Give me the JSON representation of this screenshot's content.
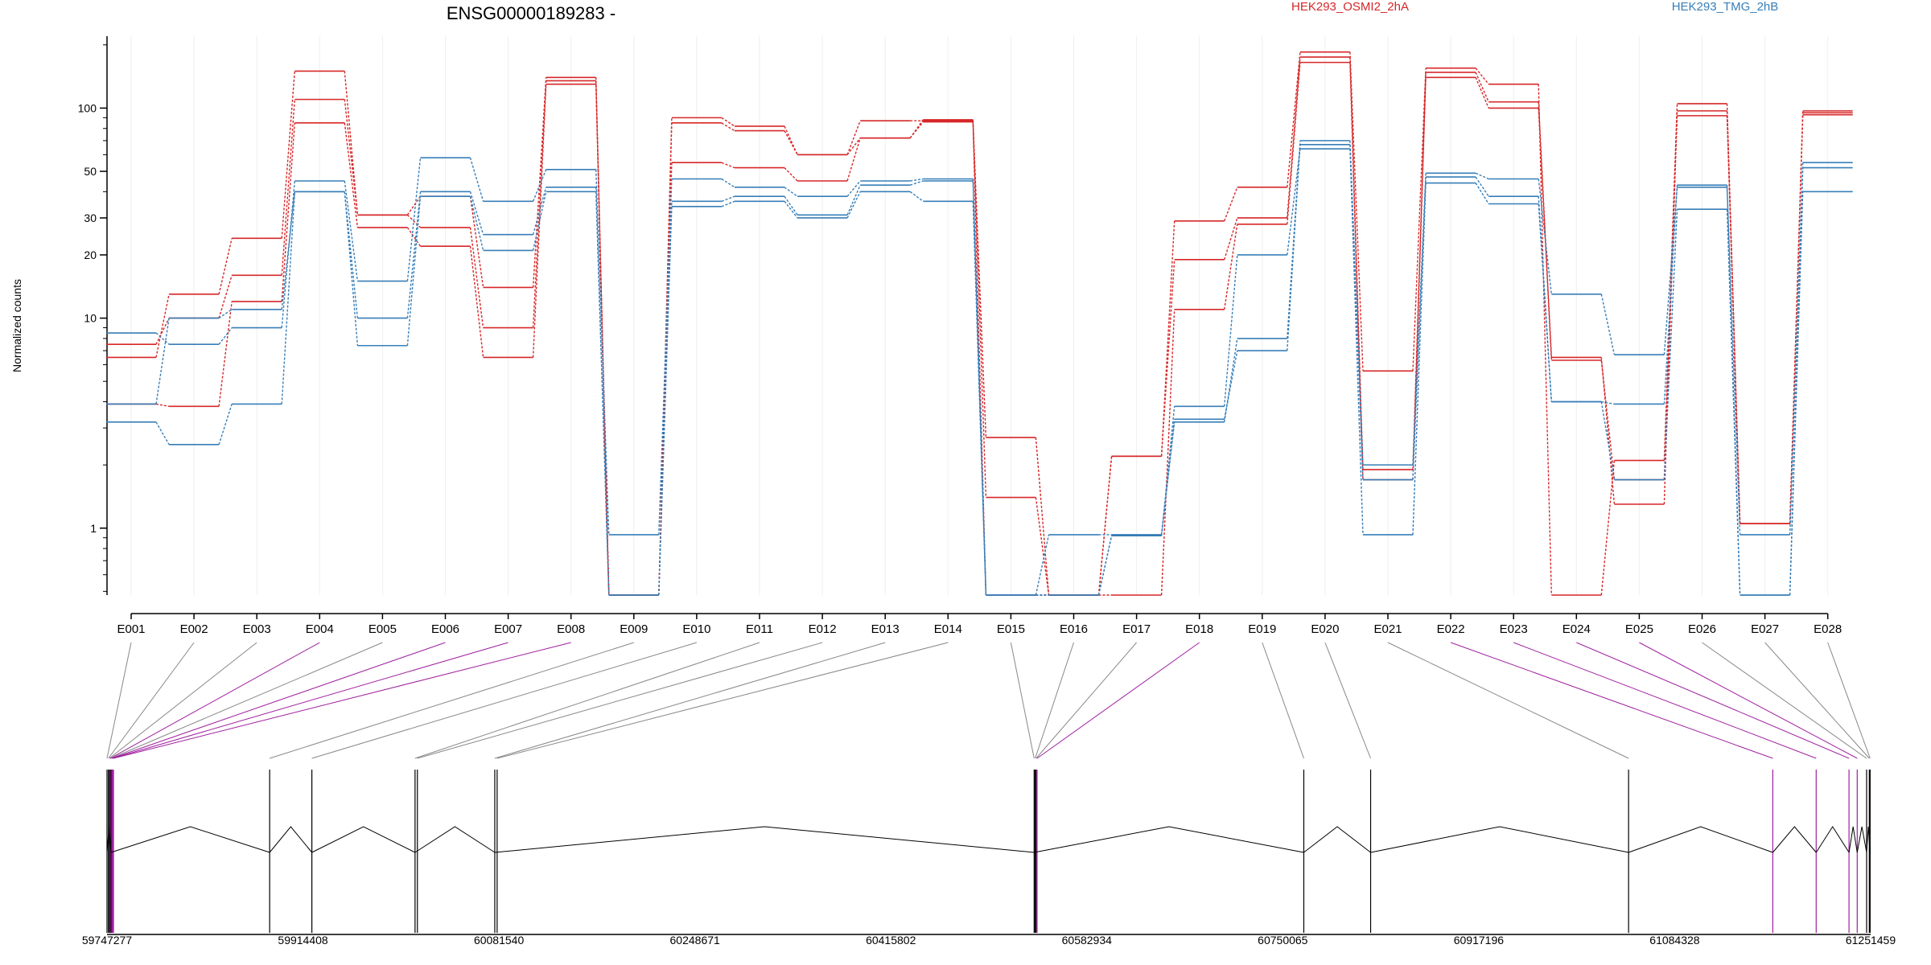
{
  "chart_data": {
    "type": "line",
    "title": "ENSG00000189283 -",
    "ylabel": "Normalized counts",
    "yscale": "log",
    "ylim": [
      0.48,
      220
    ],
    "yticks": [
      1,
      10,
      20,
      30,
      50,
      100
    ],
    "yticklabels": [
      "1",
      "10",
      "20",
      "30",
      "50",
      "100"
    ],
    "grid": false,
    "legend": [
      {
        "name": "HEK293_OSMI2_2hA",
        "color": "#d62728"
      },
      {
        "name": "HEK293_TMG_2hB",
        "color": "#377eb8"
      }
    ],
    "exons": [
      "E001",
      "E002",
      "E003",
      "E004",
      "E005",
      "E006",
      "E007",
      "E008",
      "E009",
      "E010",
      "E011",
      "E012",
      "E013",
      "E014",
      "E015",
      "E016",
      "E017",
      "E018",
      "E019",
      "E020",
      "E021",
      "E022",
      "E023",
      "E024",
      "E025",
      "E026",
      "E027",
      "E028"
    ],
    "series": [
      {
        "group": "HEK293_OSMI2_2hA",
        "color": "#d62728",
        "values": [
          6.5,
          13,
          24,
          150,
          31,
          38,
          14,
          140,
          0.48,
          90,
          82,
          60,
          87,
          87,
          2.7,
          0.48,
          2.2,
          29,
          42,
          185,
          5.6,
          155,
          130,
          0.48,
          2.1,
          105,
          1.05,
          97
        ]
      },
      {
        "group": "HEK293_OSMI2_2hA",
        "color": "#d62728",
        "values": [
          7.5,
          10,
          16,
          110,
          31,
          27,
          9,
          135,
          0.48,
          85,
          78,
          60,
          72,
          88,
          1.4,
          0.48,
          2.2,
          19,
          30,
          175,
          1.9,
          148,
          107,
          6.5,
          1.3,
          97,
          1.05,
          95
        ]
      },
      {
        "group": "HEK293_OSMI2_2hA",
        "color": "#d62728",
        "values": [
          3.9,
          3.8,
          12,
          85,
          27,
          22,
          6.5,
          130,
          0.48,
          55,
          52,
          45,
          72,
          86,
          0.48,
          0.48,
          0.48,
          11,
          28,
          165,
          1.7,
          140,
          100,
          6.3,
          1.7,
          92,
          1.05,
          93
        ]
      },
      {
        "group": "HEK293_TMG_2hB",
        "color": "#377eb8",
        "values": [
          8.5,
          7.5,
          9,
          45,
          15,
          58,
          36,
          51,
          0.93,
          46,
          42,
          38,
          45,
          46,
          0.48,
          0.93,
          0.93,
          3.2,
          8,
          70,
          2.0,
          49,
          46,
          13,
          6.7,
          42,
          0.93,
          55
        ]
      },
      {
        "group": "HEK293_TMG_2hB",
        "color": "#377eb8",
        "values": [
          3.9,
          10,
          11,
          40,
          10,
          40,
          25,
          42,
          0.48,
          36,
          38,
          31,
          43,
          45,
          0.48,
          0.48,
          0.92,
          3.3,
          7,
          67,
          1.7,
          47,
          38,
          4.0,
          3.9,
          43,
          0.48,
          52
        ]
      },
      {
        "group": "HEK293_TMG_2hB",
        "color": "#377eb8",
        "values": [
          3.2,
          2.5,
          3.9,
          40,
          7.4,
          38,
          21,
          40,
          0.48,
          34,
          36,
          30,
          40,
          36,
          0.48,
          0.48,
          0.92,
          3.8,
          20,
          64,
          0.93,
          44,
          35,
          4.0,
          1.7,
          33,
          0.48,
          40
        ]
      }
    ],
    "genome": {
      "ticks": [
        "59747277",
        "59914408",
        "60081540",
        "60248671",
        "60415802",
        "60582934",
        "60750065",
        "60917196",
        "61084328",
        "61251459"
      ],
      "start": 59747277,
      "end": 61251459,
      "exon_starts": [
        59747277,
        59748500,
        59749300,
        59750000,
        59750700,
        59751400,
        59752100,
        59752800,
        59886000,
        59922000,
        60010000,
        60012000,
        60078000,
        60080000,
        60538000,
        60538900,
        60539700,
        60540500,
        60768000,
        60825000,
        61045000,
        61168000,
        61205000,
        61233000,
        61240000,
        61248000,
        61250300,
        61251000
      ],
      "highlighted": [
        "E004",
        "E006",
        "E007",
        "E008",
        "E018",
        "E022",
        "E023",
        "E024",
        "E025"
      ],
      "highlight_color": "#a020a0"
    }
  }
}
